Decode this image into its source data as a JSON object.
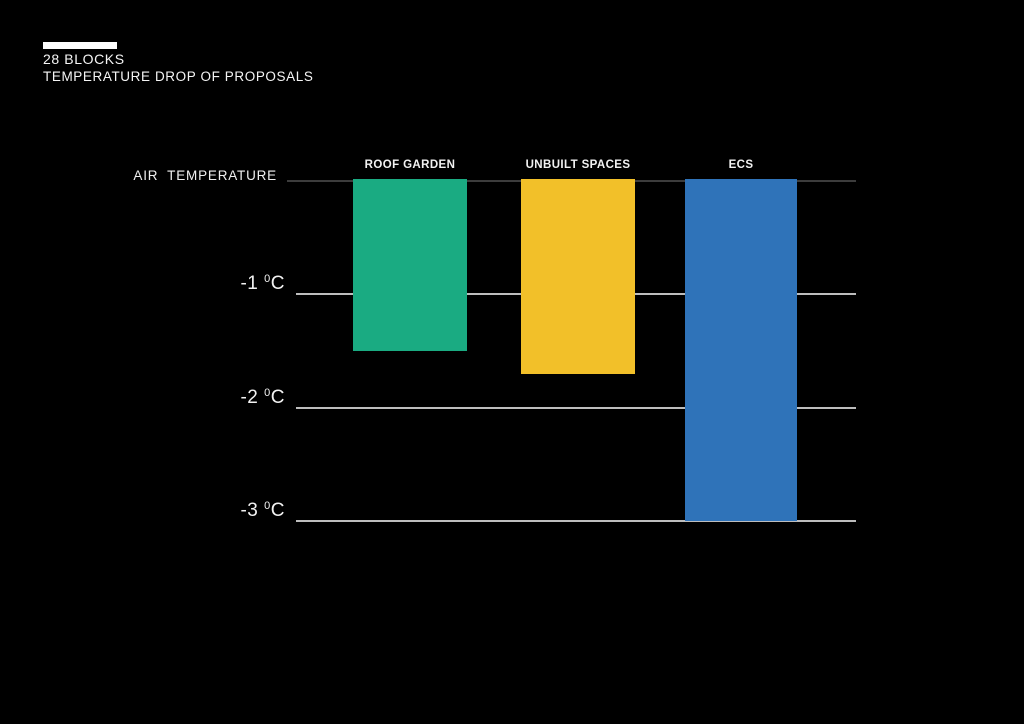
{
  "header": {
    "title": "28 BLOCKS",
    "subtitle": "TEMPERATURE DROP OF PROPOSALS"
  },
  "chart_data": {
    "type": "bar",
    "title": "TEMPERATURE DROP OF PROPOSALS",
    "baseline_label": "AIR  TEMPERATURE",
    "categories": [
      "ROOF GARDEN",
      "UNBUILT SPACES",
      "ECS"
    ],
    "values": [
      -1.5,
      -1.7,
      -3.0
    ],
    "unit": "°C",
    "bar_colors": [
      "#1AAB82",
      "#F2C029",
      "#2F73B9"
    ],
    "ylim": [
      0,
      -3
    ],
    "yticks": [
      {
        "value": -1,
        "prefix": "-1 ",
        "sup": "0",
        "suffix": "C"
      },
      {
        "value": -2,
        "prefix": "-2 ",
        "sup": "0",
        "suffix": "C"
      },
      {
        "value": -3,
        "prefix": "-3 ",
        "sup": "0",
        "suffix": "C"
      }
    ],
    "grid": {
      "zero_line_color": "#3c3c3c",
      "tick_line_color": "#bdbdbd"
    },
    "legend": "none",
    "background": "#000000"
  }
}
